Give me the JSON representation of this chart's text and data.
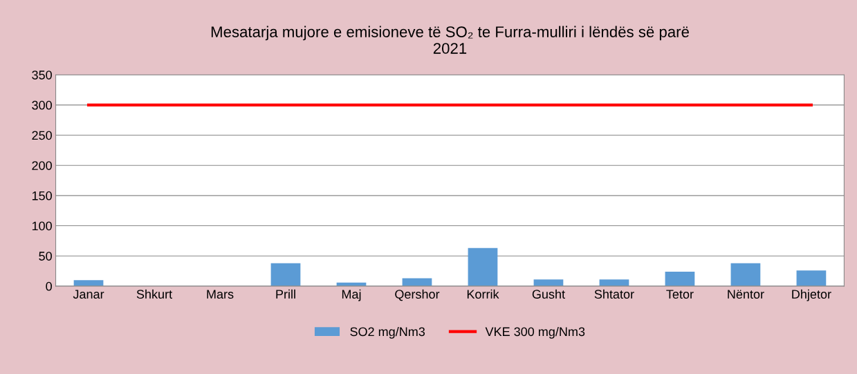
{
  "chart_data": {
    "type": "bar",
    "title": "Mesatarja mujore e emisioneve të SO₂ te Furra-mulliri i lëndës së parë\n2021",
    "categories": [
      "Janar",
      "Shkurt",
      "Mars",
      "Prill",
      "Maj",
      "Qershor",
      "Korrik",
      "Gusht",
      "Shtator",
      "Tetor",
      "Nëntor",
      "Dhjetor"
    ],
    "series": [
      {
        "name": "SO2 mg/Nm3",
        "color": "#5b9bd5",
        "values": [
          10,
          0,
          0,
          38,
          6,
          13,
          63,
          11,
          11,
          24,
          38,
          26
        ]
      },
      {
        "name": "VKE 300 mg/Nm3",
        "type": "line",
        "color": "#ff0000",
        "values": [
          300,
          300,
          300,
          300,
          300,
          300,
          300,
          300,
          300,
          300,
          300,
          300
        ]
      }
    ],
    "ylim": [
      0,
      350
    ],
    "yticks": [
      0,
      50,
      100,
      150,
      200,
      250,
      300,
      350
    ],
    "grid": "y",
    "legend": "bottom",
    "marker": "none",
    "line_style": "solid"
  }
}
